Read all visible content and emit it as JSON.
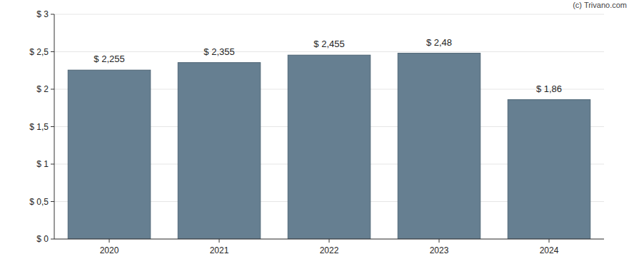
{
  "chart_data": {
    "type": "bar",
    "annotations": [
      "(c) Trivano.com"
    ],
    "categories": [
      "2020",
      "2021",
      "2022",
      "2023",
      "2024"
    ],
    "values": [
      2.255,
      2.355,
      2.455,
      2.48,
      1.86
    ],
    "value_labels": [
      "$ 2,255",
      "$ 2,355",
      "$ 2,455",
      "$ 2,48",
      "$ 1,86"
    ],
    "data_labels": true,
    "color": "#667f91",
    "ylim": [
      0,
      3
    ],
    "yticks": [
      {
        "value": 0,
        "label": "$ 0"
      },
      {
        "value": 0.5,
        "label": "$ 0,5"
      },
      {
        "value": 1,
        "label": "$ 1"
      },
      {
        "value": 1.5,
        "label": "$ 1,5"
      },
      {
        "value": 2,
        "label": "$ 2"
      },
      {
        "value": 2.5,
        "label": "$ 2,5"
      },
      {
        "value": 3,
        "label": "$ 3"
      }
    ],
    "grid": true
  }
}
